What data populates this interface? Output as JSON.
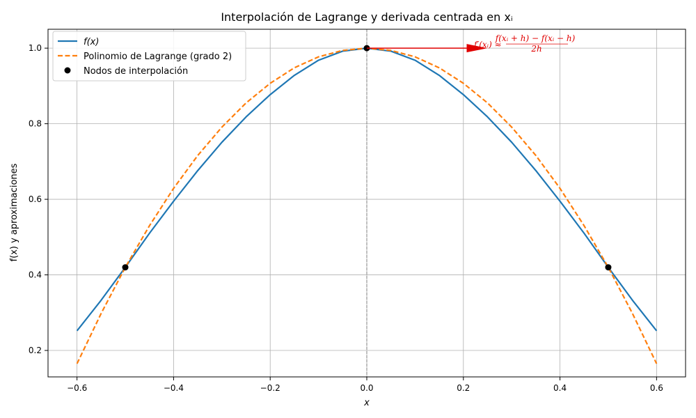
{
  "chart_data": {
    "type": "line",
    "title": "Interpolación de Lagrange y derivada centrada en xᵢ",
    "xlabel": "x",
    "ylabel": "f(x) y aproximaciones",
    "xlim": [
      -0.66,
      0.66
    ],
    "ylim": [
      0.13,
      1.05
    ],
    "xticks": [
      -0.6,
      -0.4,
      -0.2,
      0.0,
      0.2,
      0.4,
      0.6
    ],
    "xtick_labels": [
      "−0.6",
      "−0.4",
      "−0.2",
      "0.0",
      "0.2",
      "0.4",
      "0.6"
    ],
    "yticks": [
      0.2,
      0.4,
      0.6,
      0.8,
      1.0
    ],
    "ytick_labels": [
      "0.2",
      "0.4",
      "0.6",
      "0.8",
      "1.0"
    ],
    "grid": true,
    "legend_position": "top-left",
    "series": [
      {
        "name": "f(x)",
        "style": "solid",
        "color": "#1f77b4",
        "x": [
          -0.6,
          -0.55,
          -0.5,
          -0.45,
          -0.4,
          -0.35,
          -0.3,
          -0.25,
          -0.2,
          -0.15,
          -0.1,
          -0.05,
          0.0,
          0.05,
          0.1,
          0.15,
          0.2,
          0.25,
          0.3,
          0.35,
          0.4,
          0.45,
          0.5,
          0.55,
          0.6
        ],
        "y": [
          0.252,
          0.333,
          0.42,
          0.51,
          0.595,
          0.676,
          0.751,
          0.818,
          0.877,
          0.928,
          0.968,
          0.992,
          1.0,
          0.992,
          0.968,
          0.928,
          0.877,
          0.818,
          0.751,
          0.676,
          0.595,
          0.51,
          0.42,
          0.333,
          0.252
        ]
      },
      {
        "name": "Polinomio de Lagrange (grado 2)",
        "style": "dashed",
        "color": "#ff7f0e",
        "x": [
          -0.6,
          -0.55,
          -0.5,
          -0.45,
          -0.4,
          -0.35,
          -0.3,
          -0.25,
          -0.2,
          -0.15,
          -0.1,
          -0.05,
          0.0,
          0.05,
          0.1,
          0.15,
          0.2,
          0.25,
          0.3,
          0.35,
          0.4,
          0.45,
          0.5,
          0.55,
          0.6
        ],
        "y": [
          0.165,
          0.298,
          0.42,
          0.53,
          0.629,
          0.716,
          0.791,
          0.855,
          0.907,
          0.948,
          0.977,
          0.994,
          1.0,
          0.994,
          0.977,
          0.948,
          0.907,
          0.855,
          0.791,
          0.716,
          0.629,
          0.53,
          0.42,
          0.298,
          0.165
        ]
      }
    ],
    "points": {
      "name": "Nodos de interpolación",
      "color": "#000000",
      "x": [
        -0.5,
        0.0,
        0.5
      ],
      "y": [
        0.42,
        1.0,
        0.42
      ]
    },
    "vline": {
      "x": 0.0,
      "color": "#808080",
      "style": "dashed"
    },
    "annotation": {
      "text": "f′(xᵢ) ≈ [f(xᵢ + h) − f(xᵢ − h)] / 2h",
      "numerator": "f(xᵢ + h) − f(xᵢ − h)",
      "denominator": "2h",
      "prefix": "f′(xᵢ) ≈",
      "color": "#e00000",
      "arrow_from": [
        0.0,
        1.0
      ],
      "arrow_to": [
        0.25,
        1.0
      ]
    }
  }
}
